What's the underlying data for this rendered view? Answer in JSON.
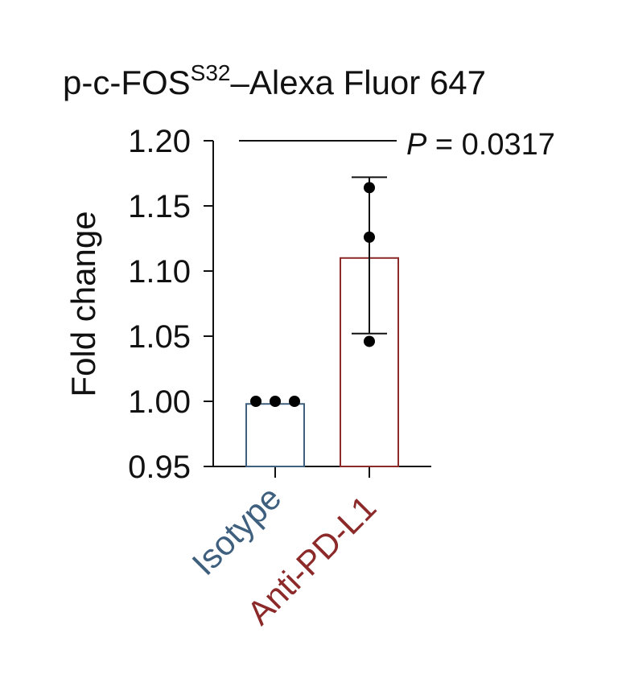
{
  "chart_data": {
    "type": "bar",
    "title": "p-c-FOS",
    "title_superscript": "S32",
    "title_suffix": "–Alexa Fluor 647",
    "ylabel": "Fold change",
    "ylim": [
      0.95,
      1.2
    ],
    "yticks": [
      0.95,
      1.0,
      1.05,
      1.1,
      1.15,
      1.2
    ],
    "ytick_labels": [
      "0.95",
      "1.00",
      "1.05",
      "1.10",
      "1.15",
      "1.20"
    ],
    "grid": false,
    "categories": [
      "Isotype",
      "Anti-PD-L1"
    ],
    "values": [
      0.998,
      1.11
    ],
    "error_bars": [
      null,
      {
        "low": 1.052,
        "high": 1.172
      }
    ],
    "points": [
      [
        1.0,
        1.0,
        1.0
      ],
      [
        1.164,
        1.126,
        1.046
      ]
    ],
    "colors": [
      "#3e5f7e",
      "#8c2a2a"
    ],
    "annotation": {
      "label_italic": "P",
      "label_rest": " = 0.0317"
    }
  }
}
